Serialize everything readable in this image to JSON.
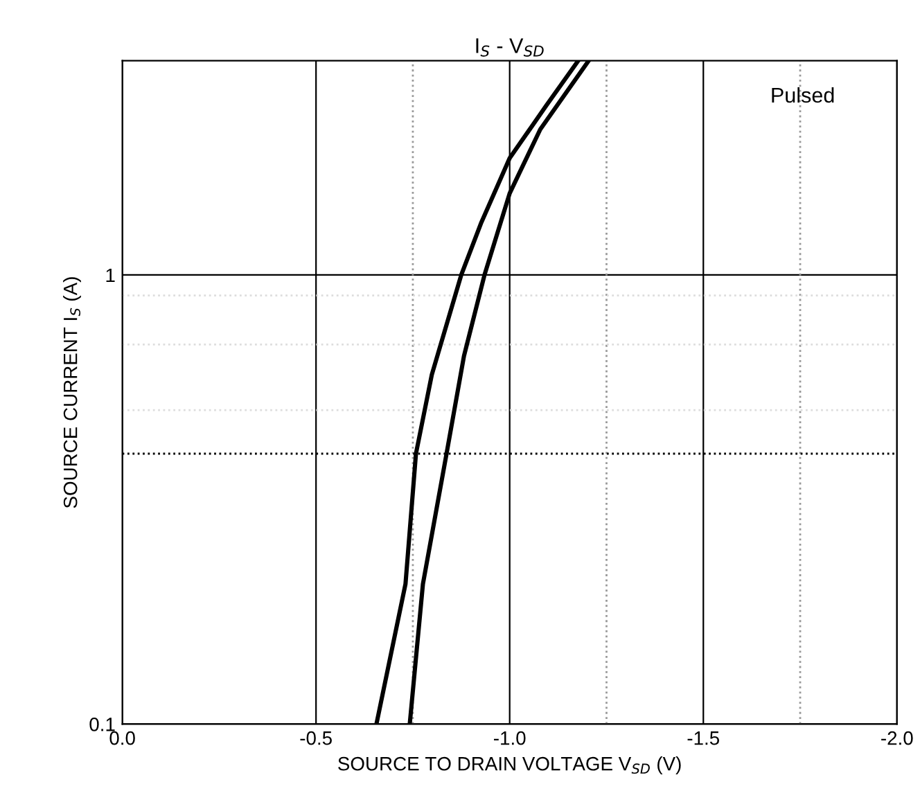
{
  "chart_data": {
    "type": "line",
    "title": "I$_{S}$ - V$_{SD}$",
    "xlabel": "SOURCE TO DRAIN VOLTAGE V$_{SD}$ (V)",
    "ylabel": "SOURCE CURRENT I$_{S}$ (A)",
    "annotations": [
      "Pulsed"
    ],
    "series": [
      {
        "color": "#000000",
        "x": [
          -0.656,
          -0.731,
          -0.758,
          -0.799,
          -0.875,
          -0.927,
          -1.0,
          -1.094,
          -1.177
        ],
        "values": [
          0.1,
          0.205,
          0.4,
          0.6,
          1.0,
          1.31,
          1.82,
          2.38,
          3.0
        ]
      },
      {
        "color": "#000000",
        "x": [
          -0.742,
          -0.776,
          -0.837,
          -0.882,
          -0.935,
          -1.0,
          -1.079,
          -1.204
        ],
        "values": [
          0.1,
          0.205,
          0.4,
          0.66,
          1.0,
          1.52,
          2.11,
          3.0
        ]
      }
    ],
    "xlim": [
      0,
      -2
    ],
    "xticks": [
      {
        "value": 0,
        "label": "0.0"
      },
      -0.5,
      {
        "value": -1,
        "label": "-1.0"
      },
      -1.5,
      {
        "value": -2,
        "label": "-2.0"
      }
    ],
    "ylim": [
      0.1,
      3
    ],
    "yticks": [
      0.1,
      1
    ],
    "log": true,
    "grid": true,
    "marker": "none",
    "line_style": "solid",
    "ref_lines": [
      {
        "axis": "x",
        "value": -0.75,
        "color": "#999999",
        "line_style": "dotted"
      },
      {
        "axis": "x",
        "value": -1.25,
        "color": "#999999",
        "line_style": "dotted"
      },
      {
        "axis": "x",
        "value": -1.75,
        "color": "#999999",
        "line_style": "dotted"
      },
      {
        "axis": "y",
        "value": 0.4,
        "color": "#000000",
        "line_style": "dotted"
      },
      {
        "axis": "y",
        "value": 0.5,
        "color": "#dddddd",
        "line_style": "dotted"
      },
      {
        "axis": "y",
        "value": 0.7,
        "color": "#dddddd",
        "line_style": "dotted"
      },
      {
        "axis": "y",
        "value": 0.9,
        "color": "#dddddd",
        "line_style": "dotted"
      }
    ]
  }
}
